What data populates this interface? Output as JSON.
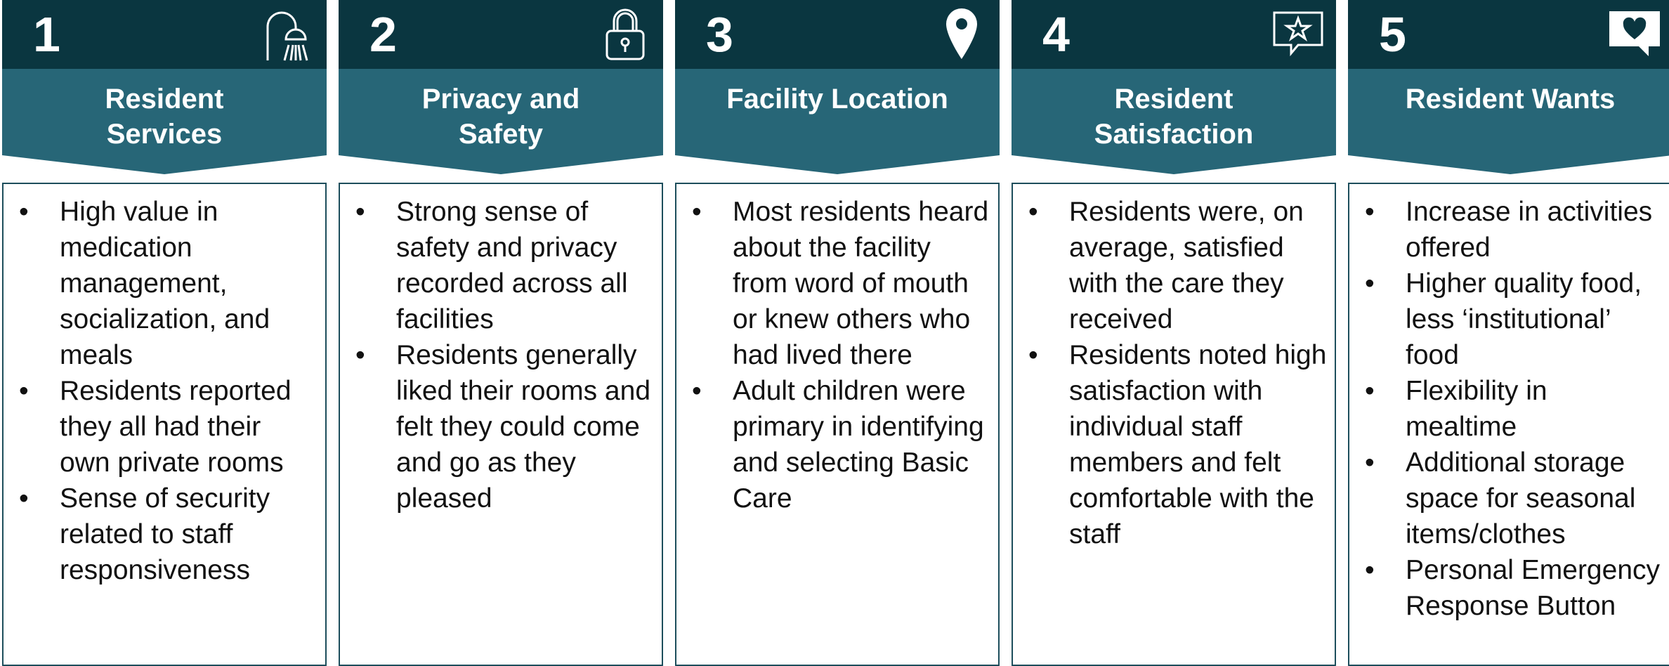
{
  "columns": [
    {
      "number": "1",
      "title": "Resident Services",
      "bullets": [
        "High value in medication management, socialization, and meals",
        "Residents reported they all had their own private rooms",
        "Sense of security related to staff responsiveness"
      ]
    },
    {
      "number": "2",
      "title": "Privacy and Safety",
      "bullets": [
        "Strong sense of safety and privacy recorded across all facilities",
        "Residents generally liked their rooms and felt they could come and go as they pleased"
      ]
    },
    {
      "number": "3",
      "title": "Facility Location",
      "bullets": [
        "Most residents heard about the facility from word of mouth or knew others who had lived there",
        "Adult children were primary in identifying and selecting Basic Care"
      ]
    },
    {
      "number": "4",
      "title": "Resident Satisfaction",
      "bullets": [
        "Residents were, on average, satisfied with the care they received",
        "Residents noted high satisfaction with individual staff members and felt comfortable with the staff"
      ]
    },
    {
      "number": "5",
      "title": "Resident Wants",
      "bullets": [
        "Increase in activities offered",
        "Higher quality food, less ‘institutional’ food",
        "Flexibility in mealtime",
        "Additional storage space for seasonal items/clothes",
        "Personal Emergency Response Button"
      ]
    }
  ]
}
